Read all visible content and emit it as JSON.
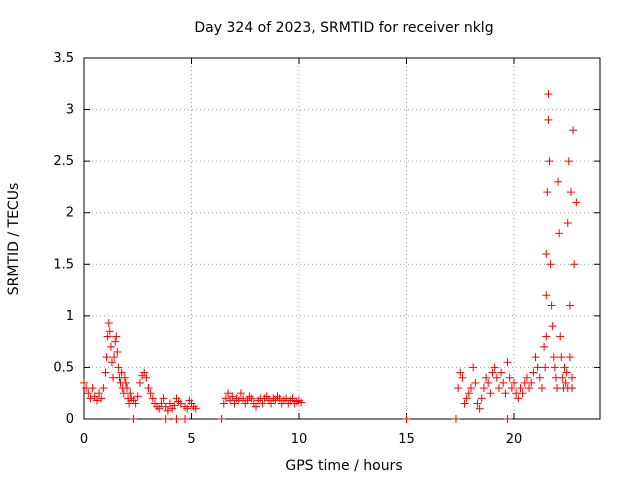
{
  "chart_data": {
    "type": "scatter",
    "title": "Day 324 of 2023, SRMTID for receiver nklg",
    "xlabel": "GPS time / hours",
    "ylabel": "SRMTID / TECUs",
    "xlim": [
      0,
      24
    ],
    "ylim": [
      0,
      3.5
    ],
    "xticks": [
      0,
      5,
      10,
      15,
      20
    ],
    "xtick_labels": [
      "0",
      "5",
      "10",
      "15",
      "20"
    ],
    "yticks": [
      0,
      0.5,
      1,
      1.5,
      2,
      2.5,
      3,
      3.5
    ],
    "ytick_labels": [
      "0",
      "0.5",
      "1",
      "1.5",
      "2",
      "2.5",
      "3",
      "3.5"
    ],
    "grid": true,
    "marker": "plus",
    "color": "#ff0000",
    "series": [
      {
        "name": "SRMTID",
        "x": [
          0.0,
          0.1,
          0.2,
          0.3,
          0.4,
          0.5,
          0.6,
          0.7,
          0.8,
          0.9,
          1.0,
          1.05,
          1.1,
          1.15,
          1.2,
          1.25,
          1.3,
          1.35,
          1.4,
          1.45,
          1.5,
          1.55,
          1.6,
          1.65,
          1.7,
          1.75,
          1.8,
          1.85,
          1.9,
          1.95,
          2.0,
          2.05,
          2.1,
          2.15,
          2.2,
          2.3,
          2.4,
          2.5,
          2.6,
          2.7,
          2.8,
          2.9,
          3.0,
          3.1,
          3.2,
          3.3,
          3.4,
          3.5,
          3.6,
          3.7,
          3.8,
          3.9,
          4.0,
          4.1,
          4.2,
          4.3,
          4.4,
          4.5,
          4.7,
          4.8,
          4.9,
          5.0,
          5.1,
          5.2,
          6.5,
          6.6,
          6.7,
          6.8,
          6.9,
          7.0,
          7.1,
          7.2,
          7.3,
          7.4,
          7.5,
          7.6,
          7.7,
          7.8,
          7.9,
          8.0,
          8.1,
          8.2,
          8.3,
          8.4,
          8.5,
          8.6,
          8.7,
          8.8,
          8.9,
          9.0,
          9.1,
          9.2,
          9.3,
          9.4,
          9.5,
          9.6,
          9.7,
          9.8,
          9.9,
          10.0,
          10.1,
          17.4,
          17.5,
          17.6,
          17.7,
          17.8,
          17.9,
          18.0,
          18.1,
          18.2,
          18.3,
          18.4,
          18.5,
          18.6,
          18.7,
          18.8,
          18.9,
          19.0,
          19.1,
          19.2,
          19.3,
          19.4,
          19.5,
          19.6,
          19.7,
          19.8,
          19.9,
          20.0,
          20.1,
          20.2,
          20.3,
          20.4,
          20.5,
          20.6,
          20.7,
          20.8,
          20.9,
          21.0,
          21.1,
          21.2,
          21.3,
          21.4,
          21.45,
          21.5,
          21.5,
          21.5,
          21.55,
          21.6,
          21.6,
          21.65,
          21.7,
          21.75,
          21.8,
          21.85,
          21.9,
          21.95,
          22.0,
          22.05,
          22.1,
          22.15,
          22.2,
          22.25,
          22.3,
          22.35,
          22.4,
          22.45,
          22.5,
          22.5,
          22.55,
          22.6,
          22.6,
          22.65,
          22.7,
          22.7,
          22.75,
          22.8,
          22.9,
          2.3,
          3.8,
          4.3,
          4.7,
          6.4,
          15.0,
          17.3,
          19.7
        ],
        "y": [
          0.35,
          0.3,
          0.25,
          0.2,
          0.3,
          0.22,
          0.18,
          0.25,
          0.2,
          0.3,
          0.45,
          0.6,
          0.8,
          0.93,
          0.85,
          0.7,
          0.55,
          0.4,
          0.6,
          0.75,
          0.8,
          0.65,
          0.5,
          0.4,
          0.35,
          0.45,
          0.3,
          0.25,
          0.4,
          0.35,
          0.3,
          0.2,
          0.15,
          0.25,
          0.2,
          0.18,
          0.15,
          0.22,
          0.35,
          0.42,
          0.45,
          0.4,
          0.3,
          0.25,
          0.2,
          0.15,
          0.12,
          0.1,
          0.15,
          0.2,
          0.12,
          0.08,
          0.15,
          0.1,
          0.13,
          0.2,
          0.17,
          0.15,
          0.12,
          0.1,
          0.18,
          0.15,
          0.12,
          0.1,
          0.15,
          0.2,
          0.25,
          0.18,
          0.22,
          0.15,
          0.2,
          0.18,
          0.25,
          0.2,
          0.15,
          0.18,
          0.22,
          0.2,
          0.15,
          0.12,
          0.18,
          0.2,
          0.15,
          0.2,
          0.22,
          0.18,
          0.15,
          0.2,
          0.18,
          0.22,
          0.2,
          0.15,
          0.18,
          0.2,
          0.15,
          0.18,
          0.2,
          0.15,
          0.17,
          0.18,
          0.16,
          0.3,
          0.45,
          0.4,
          0.15,
          0.2,
          0.25,
          0.3,
          0.5,
          0.35,
          0.15,
          0.1,
          0.2,
          0.3,
          0.4,
          0.35,
          0.25,
          0.45,
          0.5,
          0.4,
          0.3,
          0.45,
          0.35,
          0.25,
          0.55,
          0.4,
          0.3,
          0.35,
          0.25,
          0.2,
          0.3,
          0.25,
          0.35,
          0.4,
          0.3,
          0.35,
          0.45,
          0.6,
          0.5,
          0.4,
          0.3,
          0.7,
          0.5,
          0.8,
          1.2,
          1.6,
          2.2,
          3.15,
          2.9,
          2.5,
          1.5,
          1.1,
          0.9,
          0.6,
          0.5,
          0.4,
          0.3,
          2.3,
          1.8,
          0.8,
          0.6,
          0.4,
          0.3,
          0.5,
          0.35,
          0.45,
          1.9,
          0.3,
          2.5,
          1.1,
          0.6,
          2.2,
          0.4,
          0.3,
          2.8,
          1.5,
          2.1,
          0.0,
          0.0,
          0.0,
          0.0,
          0.0,
          0.0,
          0.0,
          0.0
        ]
      }
    ]
  }
}
